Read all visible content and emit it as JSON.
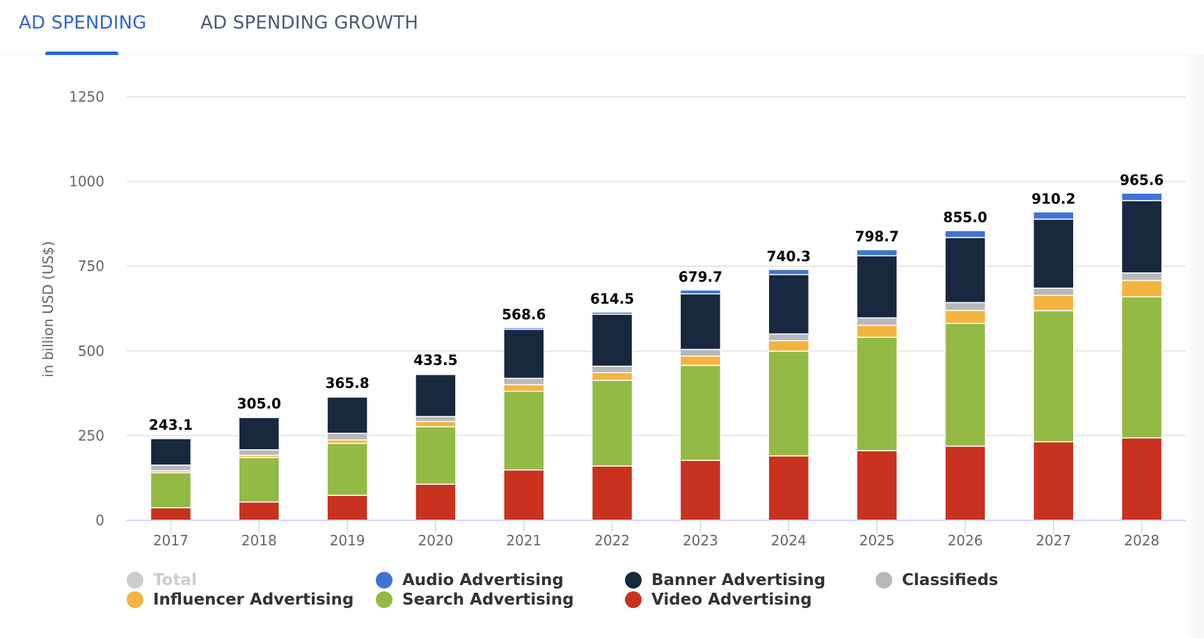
{
  "tabs": [
    {
      "label": "AD SPENDING",
      "active": true
    },
    {
      "label": "AD SPENDING GROWTH",
      "active": false
    }
  ],
  "colors": {
    "accent": "#2a66d9",
    "grid": "#e6e6e6",
    "axis": "#ccd6eb",
    "tick_text": "#666666",
    "value_label": "#000000"
  },
  "legend": [
    {
      "label": "Total",
      "color": "#cccccc",
      "muted": true
    },
    {
      "label": "Audio Advertising",
      "color": "#3f73d8",
      "muted": false
    },
    {
      "label": "Banner Advertising",
      "color": "#17283f",
      "muted": false
    },
    {
      "label": "Classifieds",
      "color": "#b8b8b8",
      "muted": false
    },
    {
      "label": "Influencer Advertising",
      "color": "#f4b43f",
      "muted": false
    },
    {
      "label": "Search Advertising",
      "color": "#93ba45",
      "muted": false
    },
    {
      "label": "Video Advertising",
      "color": "#c8321e",
      "muted": false
    }
  ],
  "chart_data": {
    "type": "bar",
    "stacked": true,
    "title": "",
    "xlabel": "",
    "ylabel": "in billion USD (US$)",
    "ylim": [
      0,
      1250
    ],
    "yticks": [
      0,
      250,
      500,
      750,
      1000,
      1250
    ],
    "grid": true,
    "legend_position": "bottom",
    "categories": [
      "2017",
      "2018",
      "2019",
      "2020",
      "2021",
      "2022",
      "2023",
      "2024",
      "2025",
      "2026",
      "2027",
      "2028"
    ],
    "totals": [
      "243.1",
      "305.0",
      "365.8",
      "433.5",
      "568.6",
      "614.5",
      "679.7",
      "740.3",
      "798.7",
      "855.0",
      "910.2",
      "965.6"
    ],
    "series": [
      {
        "name": "Video Advertising",
        "color": "#c8321e",
        "values": [
          37.2,
          54.0,
          73.6,
          106.5,
          148.6,
          160.3,
          177.1,
          190.1,
          205.6,
          218.9,
          231.7,
          243.3
        ]
      },
      {
        "name": "Search Advertising",
        "color": "#93ba45",
        "values": [
          103.1,
          131.4,
          153.7,
          169.9,
          232.3,
          252.8,
          280.3,
          309.2,
          334.6,
          362.2,
          387.2,
          416.2
        ]
      },
      {
        "name": "Influencer Advertising",
        "color": "#f4b43f",
        "values": [
          5.7,
          6.6,
          9.9,
          15.4,
          19.4,
          22.8,
          27.2,
          30.8,
          35.3,
          38.6,
          45.4,
          48.6
        ]
      },
      {
        "name": "Classifieds",
        "color": "#b8b8b8",
        "values": [
          17.0,
          16.2,
          19.5,
          14.5,
          18.7,
          19.0,
          19.9,
          20.0,
          22.0,
          23.0,
          21.0,
          22.0
        ]
      },
      {
        "name": "Banner Advertising",
        "color": "#17283f",
        "values": [
          78.1,
          95.3,
          107.2,
          124.2,
          144.8,
          153.2,
          164.0,
          175.0,
          183.2,
          192.0,
          203.7,
          213.5
        ]
      },
      {
        "name": "Audio Advertising",
        "color": "#3f73d8",
        "values": [
          2.0,
          1.5,
          1.9,
          3.0,
          4.8,
          6.4,
          11.2,
          15.2,
          18.0,
          20.3,
          21.2,
          22.0
        ]
      }
    ]
  }
}
